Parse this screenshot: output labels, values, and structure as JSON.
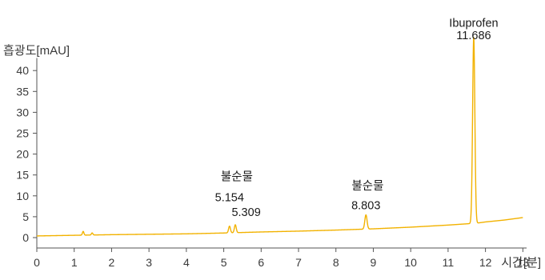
{
  "chart_data": {
    "type": "line",
    "title": "",
    "xlabel": "시간[분]",
    "ylabel": "흡광도[mAU]",
    "xlim": [
      0,
      13.1
    ],
    "ylim": [
      -2.5,
      43
    ],
    "x_ticks": [
      0,
      1,
      2,
      3,
      4,
      5,
      6,
      7,
      8,
      9,
      10,
      11,
      12,
      13
    ],
    "y_ticks": [
      0,
      5,
      10,
      15,
      20,
      25,
      30,
      35,
      40
    ],
    "grid": false,
    "line_color": "#f2b200",
    "series": [
      {
        "baseline_points": [
          [
            0,
            0.4
          ],
          [
            1,
            0.55
          ],
          [
            2,
            0.7
          ],
          [
            3,
            0.8
          ],
          [
            4,
            0.9
          ],
          [
            5,
            1.1
          ],
          [
            6,
            1.35
          ],
          [
            7,
            1.55
          ],
          [
            8,
            1.8
          ],
          [
            9,
            2.1
          ],
          [
            10,
            2.5
          ],
          [
            11,
            3.0
          ],
          [
            11.5,
            3.3
          ],
          [
            11.8,
            3.5
          ],
          [
            12,
            3.75
          ],
          [
            12.5,
            4.2
          ],
          [
            13,
            4.8
          ]
        ],
        "peaks": [
          {
            "rt": 1.24,
            "height": 0.9,
            "width": 0.02
          },
          {
            "rt": 1.48,
            "height": 0.5,
            "width": 0.02
          },
          {
            "rt": 5.154,
            "height": 1.6,
            "width": 0.025
          },
          {
            "rt": 5.309,
            "height": 1.9,
            "width": 0.025
          },
          {
            "rt": 8.803,
            "height": 3.4,
            "width": 0.03
          },
          {
            "rt": 11.686,
            "height": 44.5,
            "width": 0.03
          }
        ]
      }
    ],
    "annotations": [
      {
        "text": "Ibuprofen",
        "x": 11.686,
        "y": 50.5
      },
      {
        "text": "11.686",
        "x": 11.686,
        "y": 47.5
      },
      {
        "text": "불순물",
        "x": 5.35,
        "y": 13.7
      },
      {
        "text": "5.154",
        "x": 5.154,
        "y": 8.7
      },
      {
        "text": "5.309",
        "x": 5.6,
        "y": 5.2
      },
      {
        "text": "불순물",
        "x": 8.85,
        "y": 11.5
      },
      {
        "text": "8.803",
        "x": 8.803,
        "y": 6.8
      }
    ]
  }
}
